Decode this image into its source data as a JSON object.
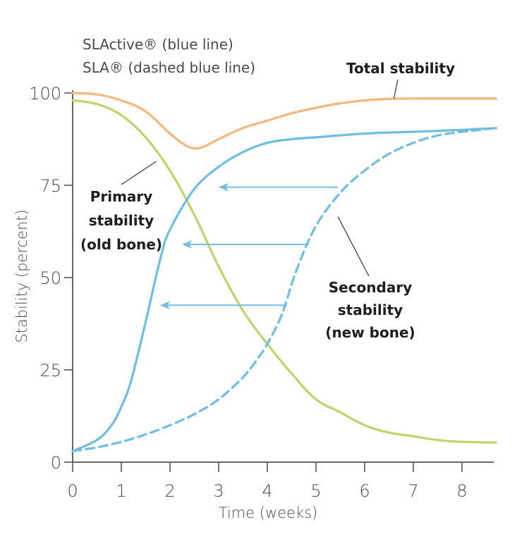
{
  "chart_data": {
    "type": "line",
    "xlabel": "Time (weeks)",
    "ylabel": "Stability (percent)",
    "xlim": [
      0,
      8.7
    ],
    "ylim": [
      0,
      100
    ],
    "x_ticks": [
      "0",
      "1",
      "2",
      "3",
      "4",
      "5",
      "6",
      "7",
      "8"
    ],
    "y_ticks": [
      "0",
      "25",
      "50",
      "75",
      "100"
    ],
    "grid": false,
    "legend_lines": [
      "SLActive® (blue line)",
      "SLA® (dashed blue line)"
    ],
    "annotations": {
      "total": [
        "Total stability"
      ],
      "primary": [
        "Primary",
        "stability",
        "(old bone)"
      ],
      "secondary": [
        "Secondary",
        "stability",
        "(new bone)"
      ]
    },
    "series": [
      {
        "key": "total",
        "color": "#f6b77e",
        "style": "solid",
        "x": [
          0,
          0.5,
          1,
          1.5,
          2,
          2.3,
          2.5,
          2.7,
          3,
          3.5,
          4,
          4.5,
          5,
          5.5,
          6,
          6.5,
          7,
          7.5,
          8,
          8.7
        ],
        "y": [
          100,
          99.6,
          98,
          95,
          89,
          86,
          85,
          85.5,
          87.5,
          90.5,
          92.5,
          94.5,
          96,
          97.2,
          98,
          98.4,
          98.5,
          98.5,
          98.5,
          98.5
        ]
      },
      {
        "key": "primary",
        "color": "#bcd46d",
        "style": "solid",
        "x": [
          0,
          0.5,
          1,
          1.5,
          2,
          2.5,
          3,
          3.5,
          4,
          4.5,
          5,
          5.5,
          6,
          6.5,
          7,
          7.5,
          8,
          8.7
        ],
        "y": [
          98,
          97,
          94,
          88,
          79,
          67,
          53,
          41,
          32,
          24,
          17,
          13.5,
          10,
          8,
          7,
          6,
          5.5,
          5.3
        ]
      },
      {
        "key": "slactive",
        "color": "#6fbde0",
        "style": "solid",
        "x": [
          0,
          0.5,
          0.8,
          1,
          1.2,
          1.5,
          1.8,
          2,
          2.5,
          3,
          3.5,
          4,
          4.5,
          5,
          6,
          7,
          8,
          8.7
        ],
        "y": [
          3,
          6,
          10,
          15,
          22,
          38,
          55,
          63,
          74,
          80,
          84,
          86.5,
          87.5,
          88,
          89,
          89.5,
          90,
          90.5
        ]
      },
      {
        "key": "sla",
        "color": "#6fbde0",
        "style": "dashed",
        "x": [
          0,
          0.5,
          1,
          1.5,
          2,
          2.5,
          3,
          3.5,
          3.8,
          4,
          4.3,
          4.6,
          5,
          5.5,
          6,
          6.5,
          7,
          7.5,
          8,
          8.7
        ],
        "y": [
          3,
          4,
          5.5,
          7.5,
          10,
          13,
          17,
          23,
          28,
          32,
          40,
          52,
          64,
          73,
          79,
          83.5,
          86.5,
          88.5,
          89.5,
          90.5
        ]
      }
    ]
  }
}
